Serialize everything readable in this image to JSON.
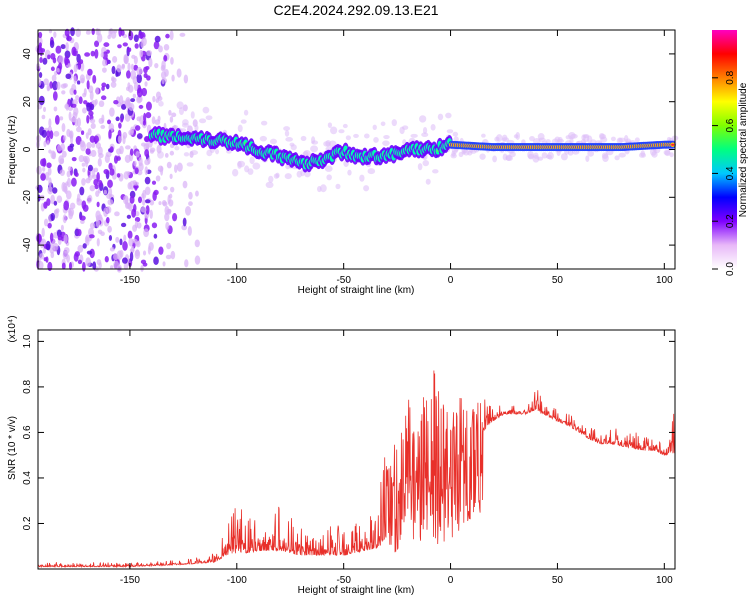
{
  "title": "C2E4.2024.292.09.13.E21",
  "chart_data": [
    {
      "type": "heatmap",
      "xlabel": "Height of straight line (km)",
      "ylabel": "Frequency (Hz)",
      "xlim": [
        -193,
        105
      ],
      "ylim": [
        -50,
        50
      ],
      "xticks": [
        -150,
        -100,
        -50,
        0,
        50,
        100
      ],
      "yticks": [
        -40,
        -20,
        0,
        20,
        40
      ],
      "colorbar": {
        "label": "Normalized spectral amplitude",
        "range": [
          0,
          1
        ],
        "ticks": [
          0.0,
          0.2,
          0.4,
          0.6,
          0.8
        ],
        "colors": [
          "#ffffff",
          "#e8b8f8",
          "#7f00ff",
          "#0000ff",
          "#00c8ff",
          "#00ff80",
          "#80ff00",
          "#ffff00",
          "#ff8000",
          "#ff0000",
          "#ff00c0"
        ]
      },
      "ridge": {
        "description": "dominant frequency track",
        "x": [
          -140,
          -120,
          -100,
          -80,
          -70,
          -60,
          -50,
          -40,
          -30,
          -20,
          -10,
          0,
          20,
          50,
          80,
          100,
          105
        ],
        "y": [
          6,
          5,
          3,
          -3,
          -6,
          -4,
          -1,
          -3,
          -3,
          0,
          0,
          2,
          1,
          1,
          1,
          2,
          2
        ]
      }
    },
    {
      "type": "line",
      "xlabel": "Height of straight line (km)",
      "ylabel": "SNR (10 * v/v)",
      "yscale_label": "(x10⁴)",
      "xlim": [
        -193,
        105
      ],
      "ylim": [
        0,
        1.05
      ],
      "xticks": [
        -150,
        -100,
        -50,
        0,
        50,
        100
      ],
      "yticks": [
        0.2,
        0.4,
        0.6,
        0.8,
        1.0
      ],
      "color": "#e8302a",
      "envelope": {
        "x": [
          -193,
          -150,
          -125,
          -110,
          -105,
          -100,
          -95,
          -90,
          -85,
          -80,
          -75,
          -70,
          -65,
          -60,
          -55,
          -50,
          -45,
          -40,
          -35,
          -30,
          -25,
          -20,
          -15,
          -10,
          -5,
          0,
          5,
          10,
          15,
          20,
          25,
          30,
          35,
          40,
          45,
          50,
          55,
          60,
          65,
          70,
          75,
          80,
          85,
          90,
          95,
          100,
          105
        ],
        "base": [
          0.01,
          0.01,
          0.02,
          0.03,
          0.06,
          0.07,
          0.07,
          0.08,
          0.08,
          0.08,
          0.07,
          0.06,
          0.06,
          0.06,
          0.06,
          0.06,
          0.07,
          0.08,
          0.09,
          0.12,
          0.2,
          0.3,
          0.3,
          0.3,
          0.25,
          0.32,
          0.45,
          0.55,
          0.6,
          0.65,
          0.68,
          0.68,
          0.68,
          0.7,
          0.67,
          0.65,
          0.63,
          0.6,
          0.57,
          0.55,
          0.55,
          0.54,
          0.53,
          0.52,
          0.52,
          0.5,
          0.5
        ],
        "peak": [
          0.03,
          0.03,
          0.04,
          0.07,
          0.2,
          0.3,
          0.22,
          0.25,
          0.26,
          0.28,
          0.26,
          0.2,
          0.15,
          0.16,
          0.2,
          0.22,
          0.25,
          0.22,
          0.25,
          0.55,
          0.55,
          0.8,
          0.6,
          1.02,
          0.85,
          0.65,
          0.8,
          0.75,
          0.77,
          0.73,
          0.73,
          0.73,
          0.7,
          0.8,
          0.73,
          0.7,
          0.68,
          0.68,
          0.63,
          0.6,
          0.62,
          0.62,
          0.6,
          0.6,
          0.58,
          0.58,
          0.7
        ]
      }
    }
  ]
}
